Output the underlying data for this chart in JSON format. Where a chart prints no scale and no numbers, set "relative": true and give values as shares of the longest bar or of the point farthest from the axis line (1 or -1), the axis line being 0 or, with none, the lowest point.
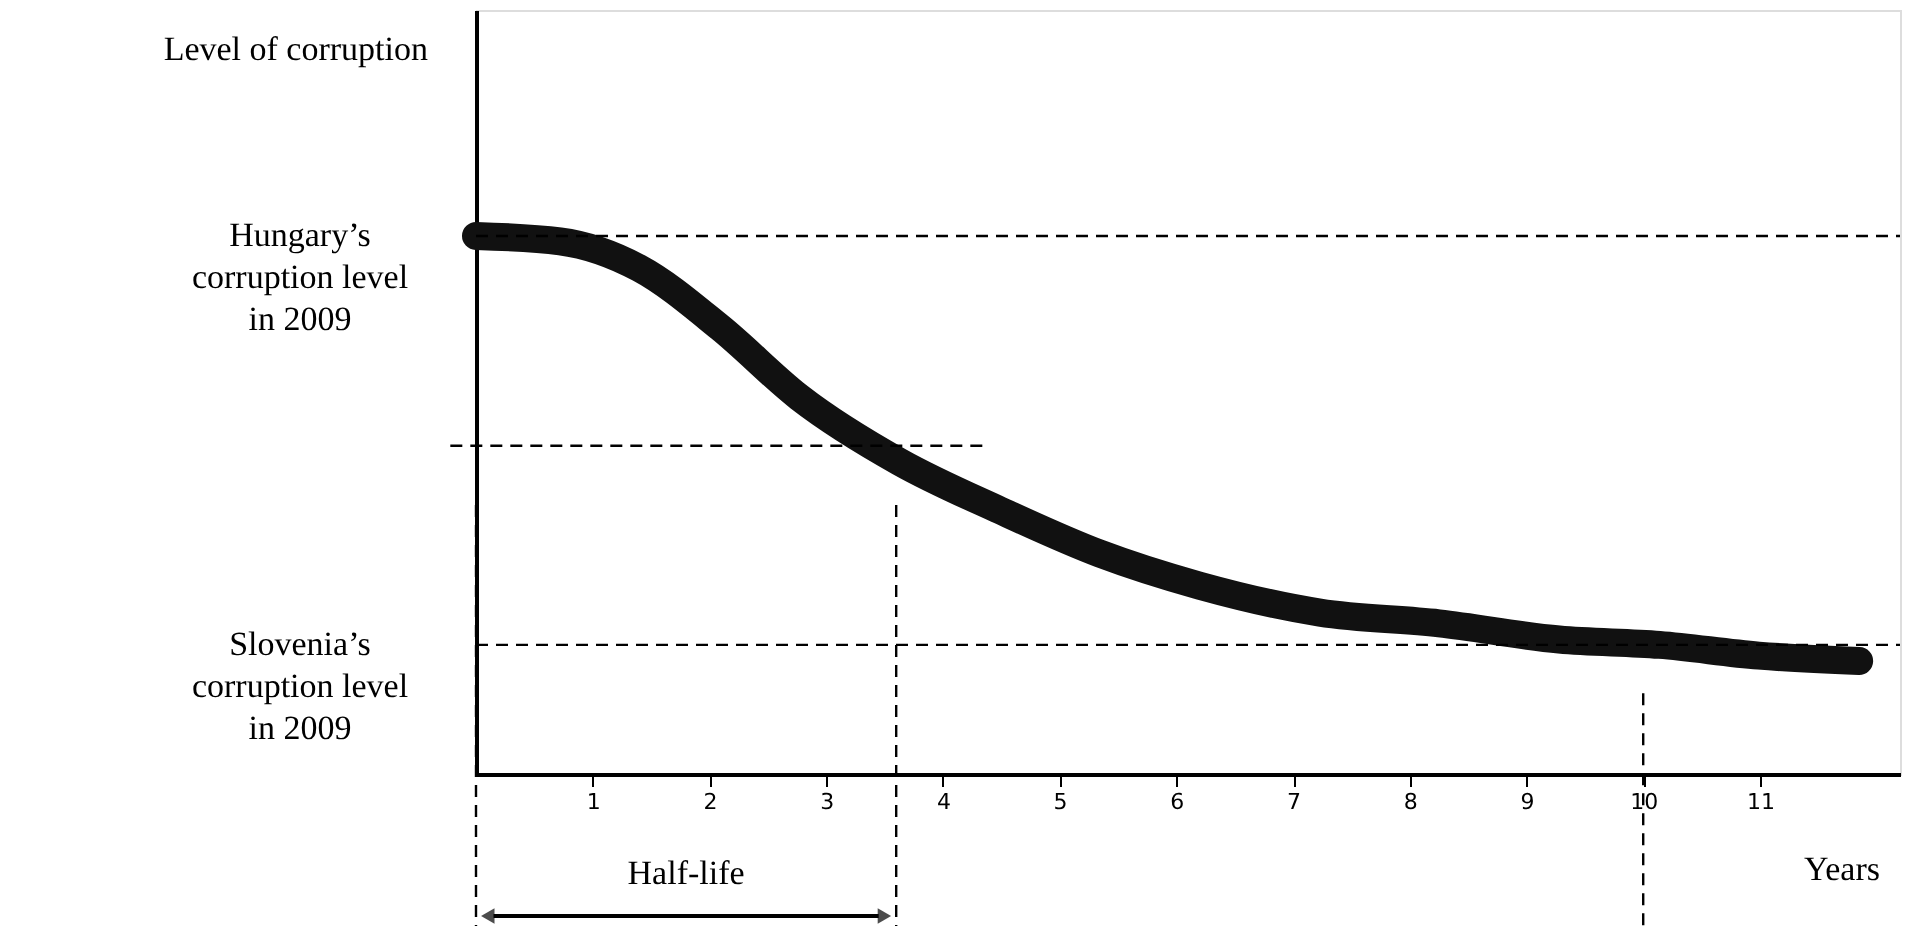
{
  "chart_data": {
    "type": "line",
    "relative": true,
    "xlabel": "Years",
    "x": [
      0,
      0.72,
      1.4,
      2.09,
      2.77,
      3.63,
      4.49,
      5.34,
      6.2,
      7.23,
      8.25,
      9.28,
      10.14,
      10.99,
      11.85
    ],
    "series": [
      {
        "color": "#111111",
        "values": [
          1.0,
          0.99,
          0.94,
          0.83,
          0.7,
          0.58,
          0.49,
          0.41,
          0.35,
          0.3,
          0.28,
          0.25,
          0.24,
          0.22,
          0.21
        ]
      }
    ],
    "xlim": [
      0,
      12.2
    ],
    "xticks": [
      1,
      2,
      3,
      4,
      5,
      6,
      7,
      8,
      9,
      10,
      11
    ],
    "ref_lines": [
      {
        "axis": "y",
        "value": 1.0,
        "label": "Hungary’s corruption level in 2009",
        "line_style": "dashed"
      },
      {
        "axis": "y",
        "value": 0.24,
        "label": "Slovenia’s corruption level in 2009",
        "line_style": "dashed"
      },
      {
        "axis": "y",
        "value": 0.61,
        "line_style": "dashed"
      },
      {
        "axis": "x",
        "value": 3.6,
        "line_style": "dashed"
      },
      {
        "axis": "x",
        "value": 10,
        "line_style": "dashed"
      },
      {
        "axis": "x",
        "value": 0,
        "line_style": "dashed"
      }
    ],
    "annotations": [
      "Half-life",
      "Level of corruption"
    ],
    "grid": false,
    "line_style": "solid"
  }
}
